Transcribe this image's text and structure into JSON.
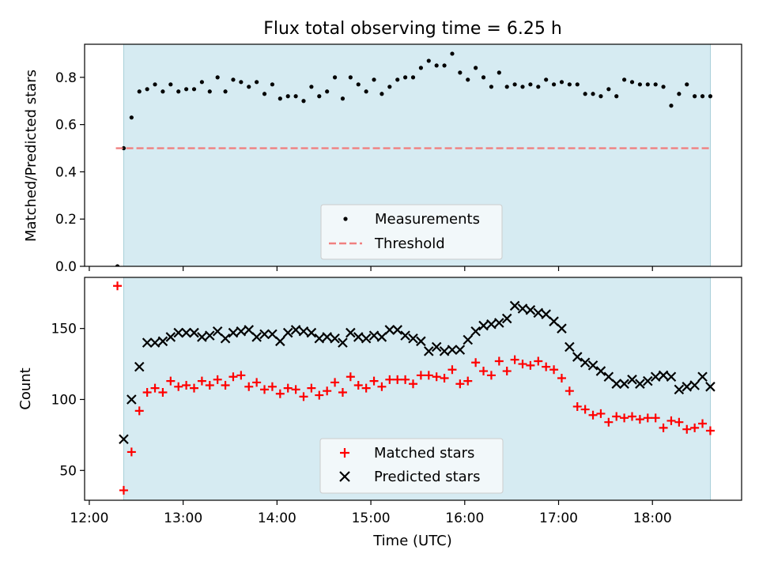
{
  "chart_data": [
    {
      "type": "scatter",
      "title": "Flux total observing time = 6.25 h",
      "xlabel": "",
      "ylabel": "Matched/Predicted stars",
      "xlim": [
        "11:57",
        "18:57"
      ],
      "ylim": [
        0.0,
        0.94
      ],
      "yticks": [
        "0.0",
        "0.2",
        "0.4",
        "0.6",
        "0.8"
      ],
      "grid": false,
      "legend_position": "lower center",
      "observing_window": [
        "12:22",
        "18:37"
      ],
      "series": [
        {
          "name": "Measurements",
          "marker": "dot",
          "color": "#000000",
          "x": [
            "12:18",
            "12:22",
            "12:27",
            "12:32",
            "12:37",
            "12:42",
            "12:47",
            "12:52",
            "12:57",
            "13:02",
            "13:07",
            "13:12",
            "13:17",
            "13:22",
            "13:27",
            "13:32",
            "13:37",
            "13:42",
            "13:47",
            "13:52",
            "13:57",
            "14:02",
            "14:07",
            "14:12",
            "14:17",
            "14:22",
            "14:27",
            "14:32",
            "14:37",
            "14:42",
            "14:47",
            "14:52",
            "14:57",
            "15:02",
            "15:07",
            "15:12",
            "15:17",
            "15:22",
            "15:27",
            "15:32",
            "15:37",
            "15:42",
            "15:47",
            "15:52",
            "15:57",
            "16:02",
            "16:07",
            "16:12",
            "16:17",
            "16:22",
            "16:27",
            "16:32",
            "16:37",
            "16:42",
            "16:47",
            "16:52",
            "16:57",
            "17:02",
            "17:07",
            "17:12",
            "17:17",
            "17:22",
            "17:27",
            "17:32",
            "17:37",
            "17:42",
            "17:47",
            "17:52",
            "17:57",
            "18:02",
            "18:07",
            "18:12",
            "18:17",
            "18:22",
            "18:27",
            "18:32",
            "18:37"
          ],
          "y": [
            0.0,
            0.5,
            0.63,
            0.74,
            0.75,
            0.77,
            0.74,
            0.77,
            0.74,
            0.75,
            0.75,
            0.78,
            0.74,
            0.8,
            0.74,
            0.79,
            0.78,
            0.76,
            0.78,
            0.73,
            0.77,
            0.71,
            0.72,
            0.72,
            0.7,
            0.76,
            0.72,
            0.74,
            0.8,
            0.71,
            0.8,
            0.77,
            0.74,
            0.79,
            0.73,
            0.76,
            0.79,
            0.8,
            0.8,
            0.84,
            0.87,
            0.85,
            0.85,
            0.9,
            0.82,
            0.79,
            0.84,
            0.8,
            0.76,
            0.82,
            0.76,
            0.77,
            0.76,
            0.77,
            0.76,
            0.79,
            0.77,
            0.78,
            0.77,
            0.77,
            0.73,
            0.73,
            0.72,
            0.75,
            0.72,
            0.79,
            0.78,
            0.77,
            0.77,
            0.77,
            0.76,
            0.68,
            0.73,
            0.77,
            0.72,
            0.72,
            0.72
          ]
        },
        {
          "name": "Threshold",
          "marker": "dashed-line",
          "color": "#f08080",
          "x": [
            "12:17",
            "18:37"
          ],
          "y": [
            0.5,
            0.5
          ]
        }
      ]
    },
    {
      "type": "scatter",
      "title": "",
      "xlabel": "Time (UTC)",
      "ylabel": "Count",
      "xlim": [
        "11:57",
        "18:57"
      ],
      "ylim": [
        29,
        186
      ],
      "xticks": [
        "12:00",
        "13:00",
        "14:00",
        "15:00",
        "16:00",
        "17:00",
        "18:00"
      ],
      "yticks": [
        "50",
        "100",
        "150"
      ],
      "grid": false,
      "legend_position": "lower center",
      "observing_window": [
        "12:22",
        "18:37"
      ],
      "series": [
        {
          "name": "Matched stars",
          "marker": "plus",
          "color": "#ff0000",
          "x": [
            "12:18",
            "12:22",
            "12:27",
            "12:32",
            "12:37",
            "12:42",
            "12:47",
            "12:52",
            "12:57",
            "13:02",
            "13:07",
            "13:12",
            "13:17",
            "13:22",
            "13:27",
            "13:32",
            "13:37",
            "13:42",
            "13:47",
            "13:52",
            "13:57",
            "14:02",
            "14:07",
            "14:12",
            "14:17",
            "14:22",
            "14:27",
            "14:32",
            "14:37",
            "14:42",
            "14:47",
            "14:52",
            "14:57",
            "15:02",
            "15:07",
            "15:12",
            "15:17",
            "15:22",
            "15:27",
            "15:32",
            "15:37",
            "15:42",
            "15:47",
            "15:52",
            "15:57",
            "16:02",
            "16:07",
            "16:12",
            "16:17",
            "16:22",
            "16:27",
            "16:32",
            "16:37",
            "16:42",
            "16:47",
            "16:52",
            "16:57",
            "17:02",
            "17:07",
            "17:12",
            "17:17",
            "17:22",
            "17:27",
            "17:32",
            "17:37",
            "17:42",
            "17:47",
            "17:52",
            "17:57",
            "18:02",
            "18:07",
            "18:12",
            "18:17",
            "18:22",
            "18:27",
            "18:32",
            "18:37"
          ],
          "y": [
            180,
            36,
            63,
            92,
            105,
            108,
            105,
            113,
            109,
            110,
            108,
            113,
            110,
            114,
            110,
            116,
            117,
            109,
            112,
            107,
            109,
            104,
            108,
            107,
            102,
            108,
            103,
            106,
            112,
            105,
            116,
            110,
            108,
            113,
            109,
            114,
            114,
            114,
            111,
            117,
            117,
            116,
            115,
            121,
            111,
            113,
            126,
            120,
            117,
            127,
            120,
            128,
            125,
            124,
            127,
            123,
            121,
            115,
            106,
            95,
            93,
            89,
            90,
            84,
            88,
            87,
            88,
            86,
            87,
            87,
            80,
            85,
            84,
            79,
            80,
            83,
            78
          ]
        },
        {
          "name": "Predicted stars",
          "marker": "x",
          "color": "#000000",
          "x": [
            "12:22",
            "12:27",
            "12:32",
            "12:37",
            "12:42",
            "12:47",
            "12:52",
            "12:57",
            "13:02",
            "13:07",
            "13:12",
            "13:17",
            "13:22",
            "13:27",
            "13:32",
            "13:37",
            "13:42",
            "13:47",
            "13:52",
            "13:57",
            "14:02",
            "14:07",
            "14:12",
            "14:17",
            "14:22",
            "14:27",
            "14:32",
            "14:37",
            "14:42",
            "14:47",
            "14:52",
            "14:57",
            "15:02",
            "15:07",
            "15:12",
            "15:17",
            "15:22",
            "15:27",
            "15:32",
            "15:37",
            "15:42",
            "15:47",
            "15:52",
            "15:57",
            "16:02",
            "16:07",
            "16:12",
            "16:17",
            "16:22",
            "16:27",
            "16:32",
            "16:37",
            "16:42",
            "16:47",
            "16:52",
            "16:57",
            "17:02",
            "17:07",
            "17:12",
            "17:17",
            "17:22",
            "17:27",
            "17:32",
            "17:37",
            "17:42",
            "17:47",
            "17:52",
            "17:57",
            "18:02",
            "18:07",
            "18:12",
            "18:17",
            "18:22",
            "18:27",
            "18:32",
            "18:37"
          ],
          "y": [
            72,
            100,
            123,
            140,
            140,
            141,
            144,
            147,
            147,
            147,
            144,
            145,
            148,
            143,
            147,
            148,
            149,
            144,
            146,
            146,
            141,
            147,
            149,
            148,
            147,
            143,
            144,
            143,
            140,
            147,
            144,
            143,
            145,
            144,
            149,
            149,
            145,
            143,
            141,
            134,
            137,
            134,
            135,
            135,
            142,
            148,
            152,
            153,
            154,
            157,
            166,
            164,
            163,
            161,
            160,
            155,
            150,
            137,
            130,
            126,
            124,
            120,
            116,
            111,
            111,
            114,
            111,
            113,
            116,
            117,
            116,
            107,
            109,
            110,
            116,
            109
          ]
        }
      ]
    }
  ]
}
